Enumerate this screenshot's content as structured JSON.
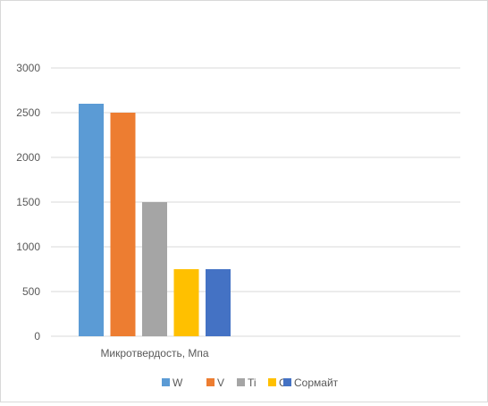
{
  "chart_data": {
    "type": "bar",
    "title": "",
    "xlabel": "",
    "ylabel": "",
    "categories": [
      "Микротвердость, Мпа"
    ],
    "series": [
      {
        "name": "W",
        "color": "#5B9BD5",
        "values": [
          2600
        ]
      },
      {
        "name": "V",
        "color": "#ED7D31",
        "values": [
          2500
        ]
      },
      {
        "name": "Ti",
        "color": "#A5A5A5",
        "values": [
          1500
        ]
      },
      {
        "name": "C",
        "color": "#FFC000",
        "values": [
          750
        ]
      },
      {
        "name": "Сормайт",
        "color": "#4472C4",
        "values": [
          750
        ]
      }
    ],
    "ylim": [
      0,
      3000
    ],
    "yticks": [
      0,
      500,
      1000,
      1500,
      2000,
      2500,
      3000
    ],
    "grid": true,
    "legend_position": "bottom"
  },
  "colors": {
    "gridline": "#d9d9d9",
    "axis_text": "#595959",
    "border": "#d9d9d9"
  }
}
